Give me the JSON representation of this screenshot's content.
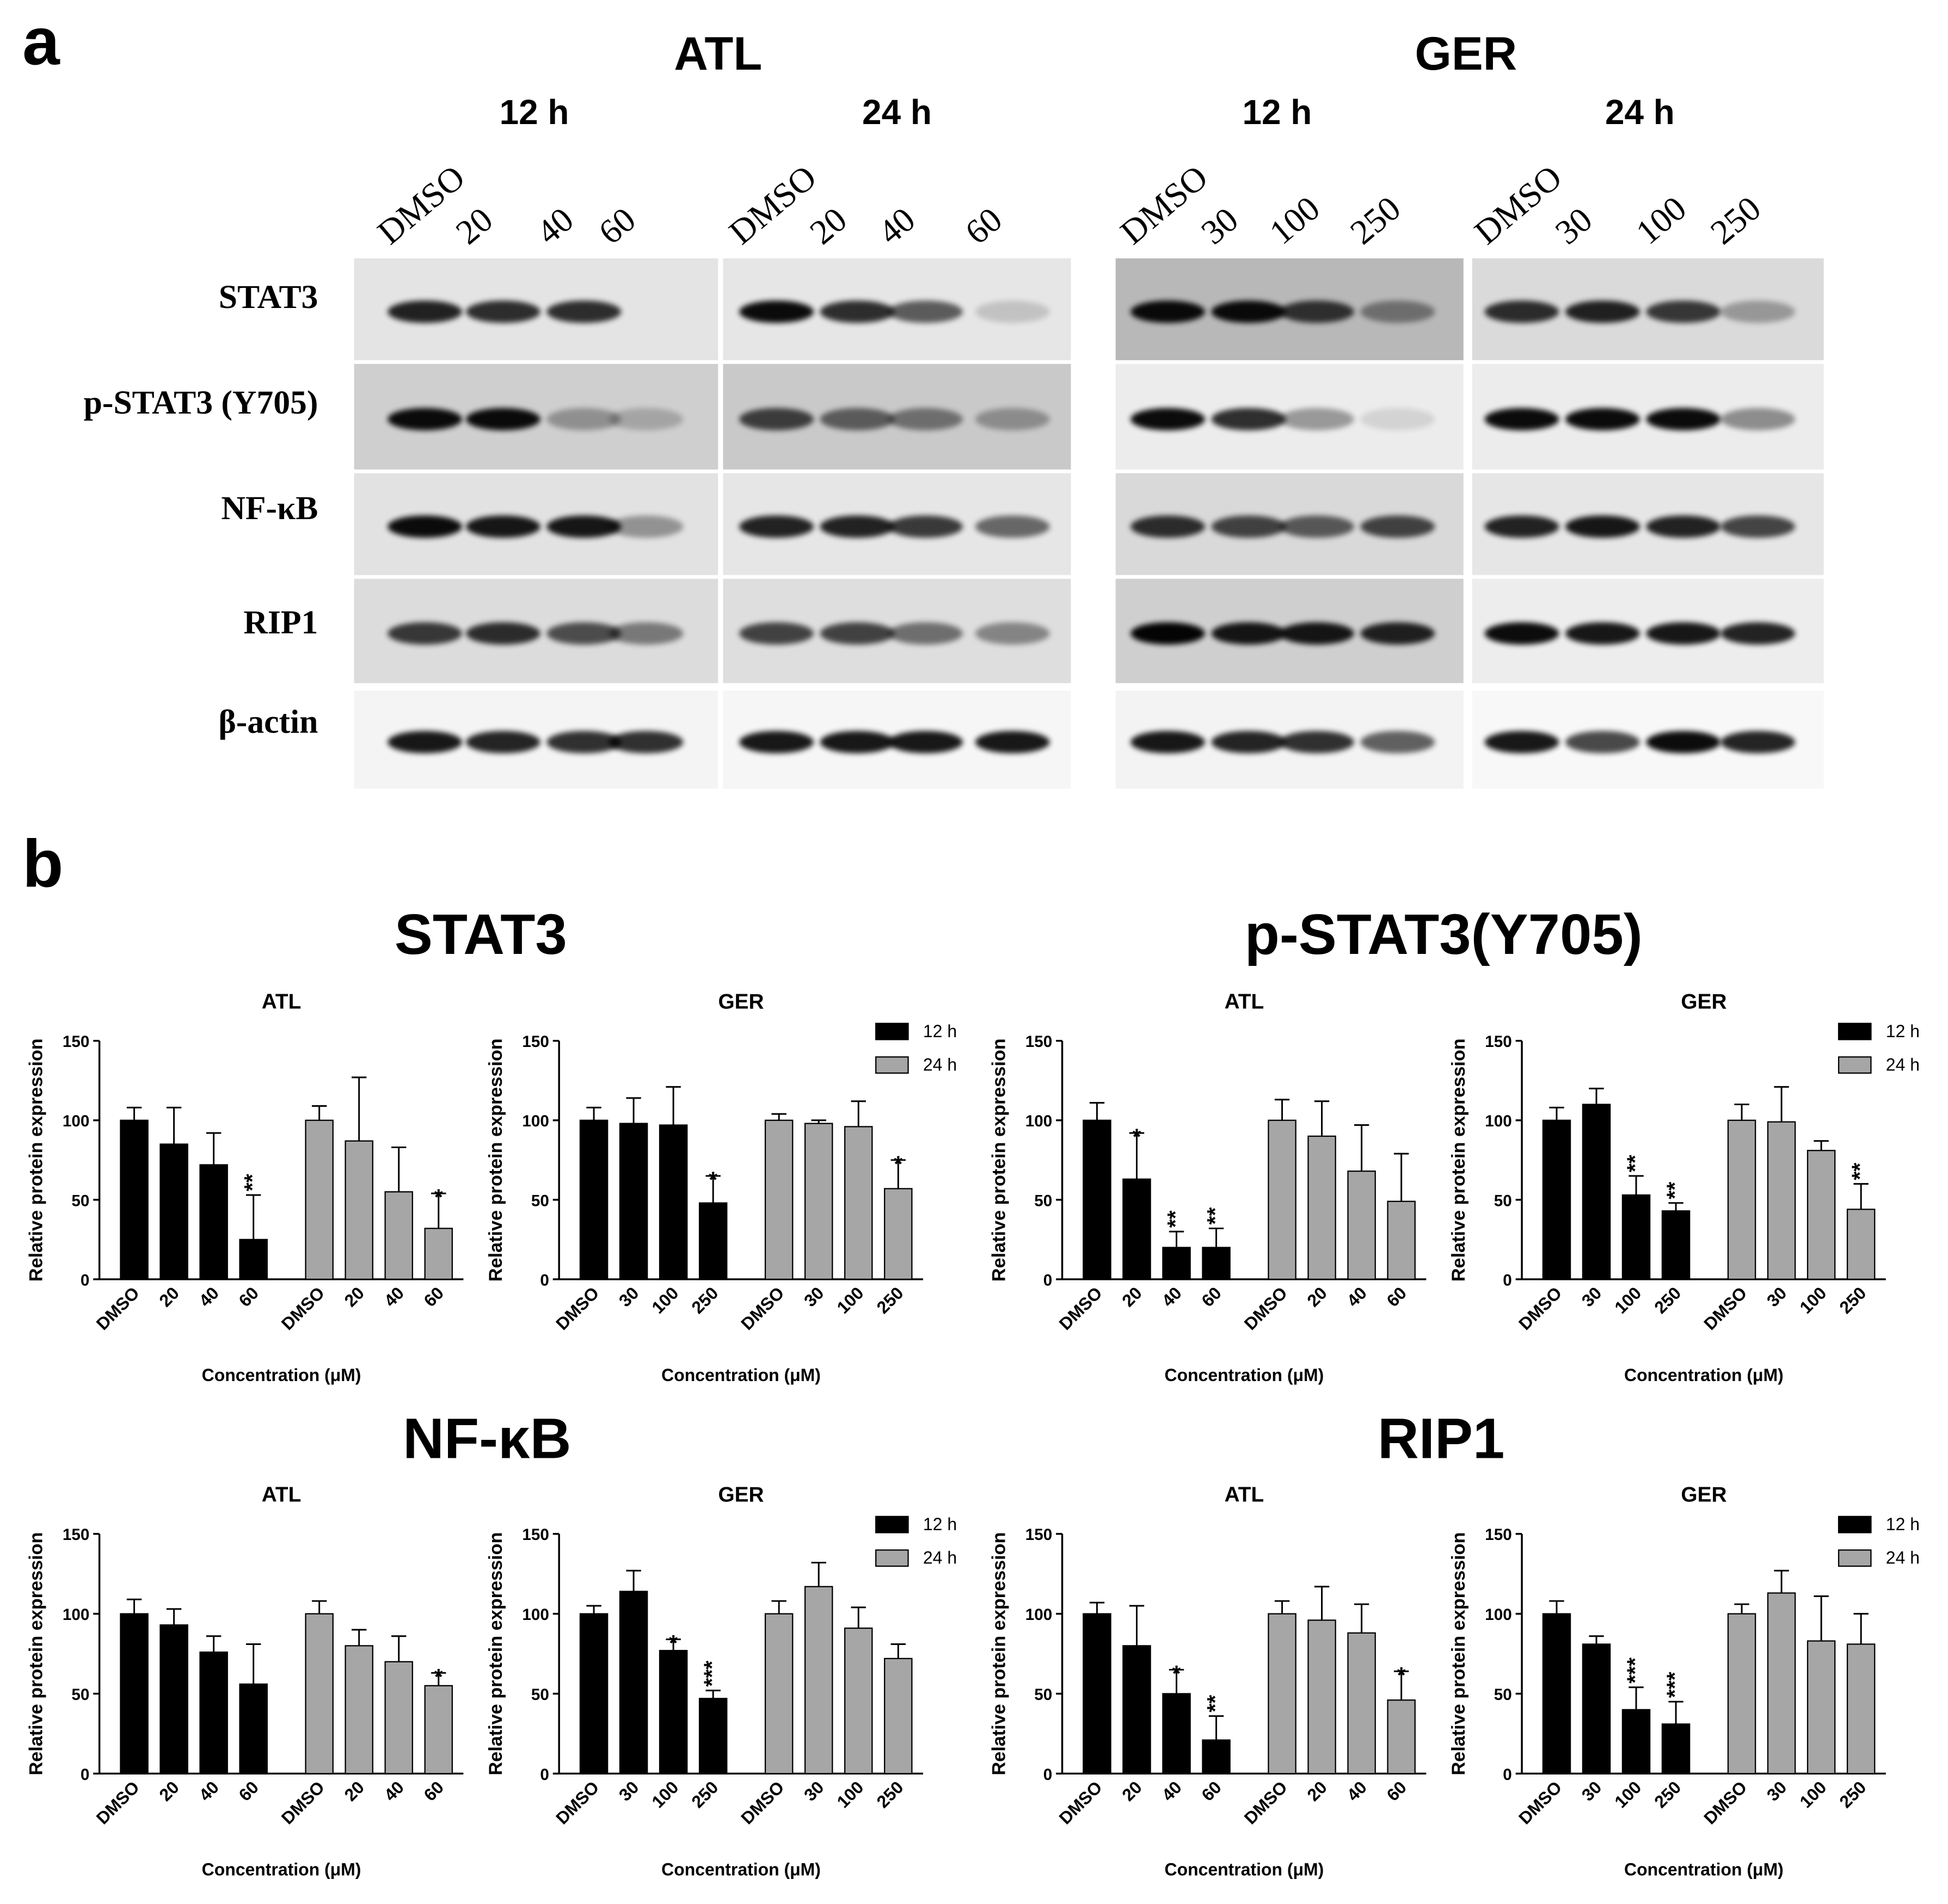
{
  "figure": {
    "panel_a_label": "a",
    "panel_b_label": "b",
    "blot": {
      "groups": [
        "ATL",
        "GER"
      ],
      "times": [
        "12 h",
        "24 h",
        "12 h",
        "24 h"
      ],
      "lanes": [
        [
          "DMSO",
          "20",
          "40",
          "60"
        ],
        [
          "DMSO",
          "20",
          "40",
          "60"
        ],
        [
          "DMSO",
          "30",
          "100",
          "250"
        ],
        [
          "DMSO",
          "30",
          "100",
          "250"
        ]
      ],
      "proteins": [
        "STAT3",
        "p-STAT3 (Y705)",
        "NF-κB",
        "RIP1",
        "β-actin"
      ]
    },
    "chart_groups": [
      "STAT3",
      "p-STAT3(Y705)",
      "NF-κB",
      "RIP1"
    ]
  },
  "chart_data": [
    {
      "type": "bar",
      "title": "ATL",
      "xlabel": "Concentration (μM)",
      "ylabel": "Relative protein expression",
      "categories": [
        "DMSO",
        "20",
        "40",
        "60",
        "DMSO",
        "20",
        "40",
        "60"
      ],
      "ylim": [
        0,
        150
      ],
      "yticks": [
        0,
        50,
        100,
        150
      ],
      "series": [
        {
          "color": "#000000",
          "values": [
            100,
            85,
            72,
            25,
            null,
            null,
            null,
            null
          ],
          "errors": [
            8,
            23,
            20,
            28,
            null,
            null,
            null,
            null
          ],
          "annotations": [
            null,
            null,
            null,
            "**",
            null,
            null,
            null,
            null
          ]
        },
        {
          "color": "#a6a6a6",
          "values": [
            null,
            null,
            null,
            null,
            100,
            87,
            55,
            32
          ],
          "errors": [
            null,
            null,
            null,
            null,
            9,
            40,
            28,
            22
          ],
          "annotations": [
            null,
            null,
            null,
            null,
            null,
            null,
            null,
            "*"
          ]
        }
      ]
    },
    {
      "type": "bar",
      "title": "GER",
      "xlabel": "Concentration (μM)",
      "ylabel": "Relative protein expression",
      "categories": [
        "DMSO",
        "30",
        "100",
        "250",
        "DMSO",
        "30",
        "100",
        "250"
      ],
      "ylim": [
        0,
        150
      ],
      "yticks": [
        0,
        50,
        100,
        150
      ],
      "legend": "upper right",
      "series": [
        {
          "name": "12 h",
          "color": "#000000",
          "values": [
            100,
            98,
            97,
            48,
            null,
            null,
            null,
            null
          ],
          "errors": [
            8,
            16,
            24,
            17,
            null,
            null,
            null,
            null
          ],
          "annotations": [
            null,
            null,
            null,
            "*",
            null,
            null,
            null,
            null
          ]
        },
        {
          "name": "24 h",
          "color": "#a6a6a6",
          "values": [
            null,
            null,
            null,
            null,
            100,
            98,
            96,
            57
          ],
          "errors": [
            null,
            null,
            null,
            null,
            4,
            2,
            16,
            18
          ],
          "annotations": [
            null,
            null,
            null,
            null,
            null,
            null,
            null,
            "*"
          ]
        }
      ]
    },
    {
      "type": "bar",
      "title": "ATL",
      "xlabel": "Concentration (μM)",
      "ylabel": "Relative protein expression",
      "categories": [
        "DMSO",
        "20",
        "40",
        "60",
        "DMSO",
        "20",
        "40",
        "60"
      ],
      "ylim": [
        0,
        150
      ],
      "yticks": [
        0,
        50,
        100,
        150
      ],
      "series": [
        {
          "color": "#000000",
          "values": [
            100,
            63,
            20,
            20,
            null,
            null,
            null,
            null
          ],
          "errors": [
            11,
            29,
            10,
            12,
            null,
            null,
            null,
            null
          ],
          "annotations": [
            null,
            "*",
            "**",
            "**",
            null,
            null,
            null,
            null
          ]
        },
        {
          "color": "#a6a6a6",
          "values": [
            null,
            null,
            null,
            null,
            100,
            90,
            68,
            49
          ],
          "errors": [
            null,
            null,
            null,
            null,
            13,
            22,
            29,
            30
          ]
        }
      ]
    },
    {
      "type": "bar",
      "title": "GER",
      "xlabel": "Concentration (μM)",
      "ylabel": "Relative protein expression",
      "categories": [
        "DMSO",
        "30",
        "100",
        "250",
        "DMSO",
        "30",
        "100",
        "250"
      ],
      "ylim": [
        0,
        150
      ],
      "yticks": [
        0,
        50,
        100,
        150
      ],
      "legend": "upper right",
      "series": [
        {
          "name": "12 h",
          "color": "#000000",
          "values": [
            100,
            110,
            53,
            43,
            null,
            null,
            null,
            null
          ],
          "errors": [
            8,
            10,
            12,
            5,
            null,
            null,
            null,
            null
          ],
          "annotations": [
            null,
            null,
            "**",
            "**",
            null,
            null,
            null,
            null
          ]
        },
        {
          "name": "24 h",
          "color": "#a6a6a6",
          "values": [
            null,
            null,
            null,
            null,
            100,
            99,
            81,
            44
          ],
          "errors": [
            null,
            null,
            null,
            null,
            10,
            22,
            6,
            16
          ],
          "annotations": [
            null,
            null,
            null,
            null,
            null,
            null,
            null,
            "**"
          ]
        }
      ]
    },
    {
      "type": "bar",
      "title": "ATL",
      "xlabel": "Concentration (μM)",
      "ylabel": "Relative protein expression",
      "categories": [
        "DMSO",
        "20",
        "40",
        "60",
        "DMSO",
        "20",
        "40",
        "60"
      ],
      "ylim": [
        0,
        150
      ],
      "yticks": [
        0,
        50,
        100,
        150
      ],
      "series": [
        {
          "color": "#000000",
          "values": [
            100,
            93,
            76,
            56,
            null,
            null,
            null,
            null
          ],
          "errors": [
            9,
            10,
            10,
            25,
            null,
            null,
            null,
            null
          ]
        },
        {
          "color": "#a6a6a6",
          "values": [
            null,
            null,
            null,
            null,
            100,
            80,
            70,
            55
          ],
          "errors": [
            null,
            null,
            null,
            null,
            8,
            10,
            16,
            8
          ],
          "annotations": [
            null,
            null,
            null,
            null,
            null,
            null,
            null,
            "*"
          ]
        }
      ]
    },
    {
      "type": "bar",
      "title": "GER",
      "xlabel": "Concentration (μM)",
      "ylabel": "Relative protein expression",
      "categories": [
        "DMSO",
        "30",
        "100",
        "250",
        "DMSO",
        "30",
        "100",
        "250"
      ],
      "ylim": [
        0,
        150
      ],
      "yticks": [
        0,
        50,
        100,
        150
      ],
      "legend": "upper right",
      "series": [
        {
          "name": "12 h",
          "color": "#000000",
          "values": [
            100,
            114,
            77,
            47,
            null,
            null,
            null,
            null
          ],
          "errors": [
            5,
            13,
            7,
            5,
            null,
            null,
            null,
            null
          ],
          "annotations": [
            null,
            null,
            "*",
            "***",
            null,
            null,
            null,
            null
          ]
        },
        {
          "name": "24 h",
          "color": "#a6a6a6",
          "values": [
            null,
            null,
            null,
            null,
            100,
            117,
            91,
            72
          ],
          "errors": [
            null,
            null,
            null,
            null,
            8,
            15,
            13,
            9
          ]
        }
      ]
    },
    {
      "type": "bar",
      "title": "ATL",
      "xlabel": "Concentration (μM)",
      "ylabel": "Relative protein expression",
      "categories": [
        "DMSO",
        "20",
        "40",
        "60",
        "DMSO",
        "20",
        "40",
        "60"
      ],
      "ylim": [
        0,
        150
      ],
      "yticks": [
        0,
        50,
        100,
        150
      ],
      "series": [
        {
          "color": "#000000",
          "values": [
            100,
            80,
            50,
            21,
            null,
            null,
            null,
            null
          ],
          "errors": [
            7,
            25,
            15,
            15,
            null,
            null,
            null,
            null
          ],
          "annotations": [
            null,
            null,
            "*",
            "**",
            null,
            null,
            null,
            null
          ]
        },
        {
          "color": "#a6a6a6",
          "values": [
            null,
            null,
            null,
            null,
            100,
            96,
            88,
            46
          ],
          "errors": [
            null,
            null,
            null,
            null,
            8,
            21,
            18,
            18
          ],
          "annotations": [
            null,
            null,
            null,
            null,
            null,
            null,
            null,
            "*"
          ]
        }
      ]
    },
    {
      "type": "bar",
      "title": "GER",
      "xlabel": "Concentration (μM)",
      "ylabel": "Relative protein expression",
      "categories": [
        "DMSO",
        "30",
        "100",
        "250",
        "DMSO",
        "30",
        "100",
        "250"
      ],
      "ylim": [
        0,
        150
      ],
      "yticks": [
        0,
        50,
        100,
        150
      ],
      "legend": "upper right",
      "series": [
        {
          "name": "12 h",
          "color": "#000000",
          "values": [
            100,
            81,
            40,
            31,
            null,
            null,
            null,
            null
          ],
          "errors": [
            8,
            5,
            14,
            14,
            null,
            null,
            null,
            null
          ],
          "annotations": [
            null,
            null,
            "***",
            "***",
            null,
            null,
            null,
            null
          ]
        },
        {
          "name": "24 h",
          "color": "#a6a6a6",
          "values": [
            null,
            null,
            null,
            null,
            100,
            113,
            83,
            81
          ],
          "errors": [
            null,
            null,
            null,
            null,
            6,
            14,
            28,
            19
          ]
        }
      ]
    }
  ]
}
